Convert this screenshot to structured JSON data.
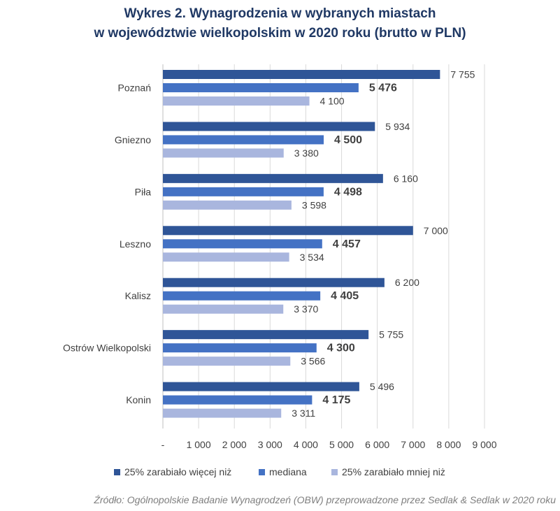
{
  "chart_data": {
    "type": "bar",
    "orientation": "horizontal",
    "title_line1": "Wykres 2. Wynagrodzenia w wybranych miastach",
    "title_line2": "w województwie wielkopolskim w 2020 roku (brutto w PLN)",
    "categories": [
      "Poznań",
      "Gniezno",
      "Piła",
      "Leszno",
      "Kalisz",
      "Ostrów Wielkopolski",
      "Konin"
    ],
    "series": [
      {
        "name": "25% zarabiało więcej niż",
        "color": "#2f5597",
        "values": [
          7755,
          5934,
          6160,
          7000,
          6200,
          5755,
          5496
        ],
        "labels": [
          "7 755",
          "5 934",
          "6 160",
          "7 000",
          "6 200",
          "5 755",
          "5 496"
        ],
        "bold": false
      },
      {
        "name": "mediana",
        "color": "#4472c4",
        "values": [
          5476,
          4500,
          4498,
          4457,
          4405,
          4300,
          4175
        ],
        "labels": [
          "5 476",
          "4 500",
          "4 498",
          "4 457",
          "4 405",
          "4 300",
          "4 175"
        ],
        "bold": true
      },
      {
        "name": "25% zarabiało mniej niż",
        "color": "#a9b6de",
        "values": [
          4100,
          3380,
          3598,
          3534,
          3370,
          3566,
          3311
        ],
        "labels": [
          "4 100",
          "3 380",
          "3 598",
          "3 534",
          "3 370",
          "3 566",
          "3 311"
        ],
        "bold": false
      }
    ],
    "xlim": [
      0,
      9000
    ],
    "xticks": [
      0,
      1000,
      2000,
      3000,
      4000,
      5000,
      6000,
      7000,
      8000,
      9000
    ],
    "xtick_labels": [
      "-",
      "1 000",
      "2 000",
      "3 000",
      "4 000",
      "5 000",
      "6 000",
      "7 000",
      "8 000",
      "9 000"
    ],
    "grid": true,
    "legend_position": "bottom"
  },
  "source": "Źródło: Ogólnopolskie Badanie Wynagrodzeń (OBW) przeprowadzone przez Sedlak & Sedlak w 2020 roku"
}
